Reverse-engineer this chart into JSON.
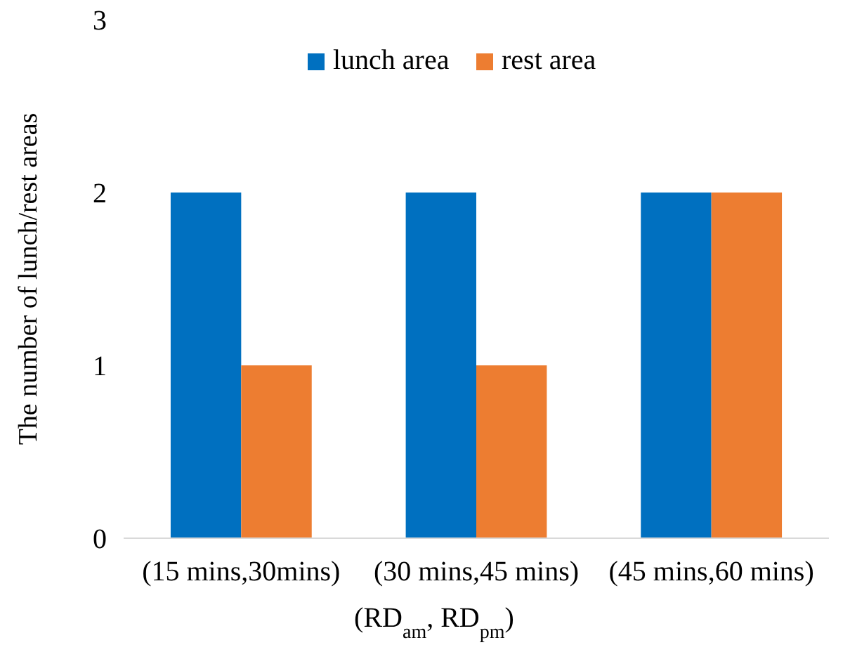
{
  "chart_data": {
    "type": "bar",
    "xlabel": "(RD$_{am}$, RD$_{pm}$)",
    "ylabel": "The number of lunch/rest areas",
    "categories": [
      "(15 mins,30mins)",
      "(30 mins,45 mins)",
      "(45 mins,60 mins)"
    ],
    "series": [
      {
        "name": "lunch area",
        "color": "#0070c0",
        "values": [
          2,
          2,
          2
        ]
      },
      {
        "name": "rest area",
        "color": "#ed7d31",
        "values": [
          1,
          1,
          2
        ]
      }
    ],
    "ylim": [
      0,
      3
    ],
    "yticks": [
      0,
      1,
      2,
      3
    ],
    "grid": false,
    "legend": "top"
  }
}
